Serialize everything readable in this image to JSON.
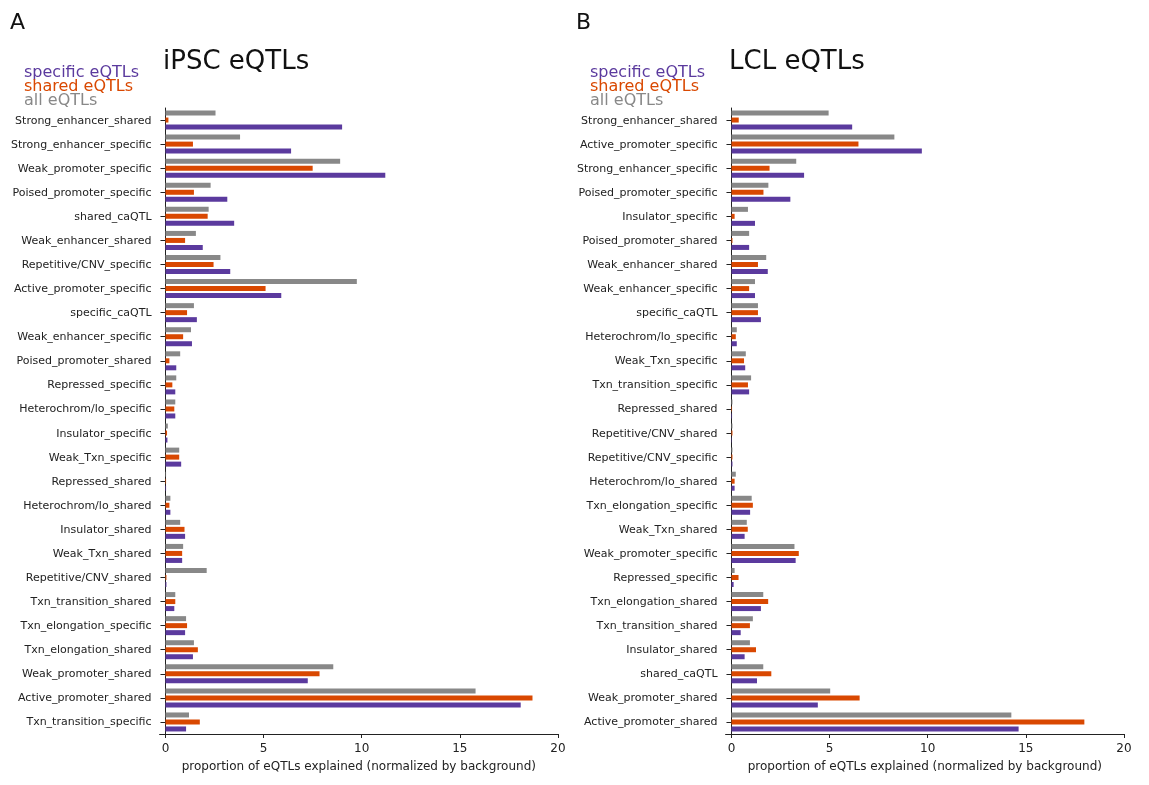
{
  "chart_data": [
    {
      "type": "bar",
      "orientation": "horizontal",
      "title": "iPSC eQTLs",
      "annotations": [
        "A"
      ],
      "xlabel": "proportion of eQTLs explained (normalized by background)",
      "legend": "top left",
      "grid": false,
      "xlim": [
        -0.3,
        20
      ],
      "xticks": [
        0,
        5,
        10,
        15,
        20
      ],
      "categories": [
        "Strong_enhancer_shared",
        "Strong_enhancer_specific",
        "Weak_promoter_specific",
        "Poised_promoter_specific",
        "shared_caQTL",
        "Weak_enhancer_shared",
        "Repetitive/CNV_specific",
        "Active_promoter_specific",
        "specific_caQTL",
        "Weak_enhancer_specific",
        "Poised_promoter_shared",
        "Repressed_specific",
        "Heterochrom/lo_specific",
        "Insulator_specific",
        "Weak_Txn_specific",
        "Repressed_shared",
        "Heterochrom/lo_shared",
        "Insulator_shared",
        "Weak_Txn_shared",
        "Repetitive/CNV_shared",
        "Txn_transition_shared",
        "Txn_elongation_specific",
        "Txn_elongation_shared",
        "Weak_promoter_shared",
        "Active_promoter_shared",
        "Txn_transition_specific"
      ],
      "series": [
        {
          "name": "specific eQTLs",
          "color": "#5b3a9e",
          "values": [
            9.0,
            6.4,
            11.2,
            3.15,
            3.5,
            1.9,
            3.3,
            5.9,
            1.6,
            1.35,
            0.55,
            0.5,
            0.5,
            0.1,
            0.8,
            0.03,
            0.25,
            1.0,
            0.85,
            0.05,
            0.45,
            1.0,
            1.4,
            7.25,
            18.1,
            1.05
          ]
        },
        {
          "name": "shared eQTLs",
          "color": "#d94801",
          "values": [
            0.15,
            1.4,
            7.5,
            1.45,
            2.15,
            1.0,
            2.45,
            5.1,
            1.1,
            0.9,
            0.2,
            0.35,
            0.45,
            0.08,
            0.7,
            0.03,
            0.2,
            0.97,
            0.85,
            0.05,
            0.5,
            1.1,
            1.65,
            7.85,
            18.7,
            1.75
          ]
        },
        {
          "name": "all eQTLs",
          "color": "#888888",
          "values": [
            2.55,
            3.8,
            8.9,
            2.3,
            2.2,
            1.55,
            2.8,
            9.75,
            1.45,
            1.3,
            0.75,
            0.55,
            0.5,
            0.12,
            0.7,
            0.03,
            0.25,
            0.75,
            0.9,
            2.1,
            0.5,
            1.05,
            1.45,
            8.55,
            15.8,
            1.2
          ]
        }
      ]
    },
    {
      "type": "bar",
      "orientation": "horizontal",
      "title": "LCL eQTLs",
      "annotations": [
        "B"
      ],
      "xlabel": "proportion of eQTLs explained (normalized by background)",
      "legend": "top left",
      "grid": false,
      "xlim": [
        -0.3,
        20
      ],
      "xticks": [
        0,
        5,
        10,
        15,
        20
      ],
      "categories": [
        "Strong_enhancer_shared",
        "Active_promoter_specific",
        "Strong_enhancer_specific",
        "Poised_promoter_specific",
        "Insulator_specific",
        "Poised_promoter_shared",
        "Weak_enhancer_shared",
        "Weak_enhancer_specific",
        "specific_caQTL",
        "Heterochrom/lo_specific",
        "Weak_Txn_specific",
        "Txn_transition_specific",
        "Repressed_shared",
        "Repetitive/CNV_shared",
        "Repetitive/CNV_specific",
        "Heterochrom/lo_shared",
        "Txn_elongation_specific",
        "Weak_Txn_shared",
        "Weak_promoter_specific",
        "Repressed_specific",
        "Txn_elongation_shared",
        "Txn_transition_shared",
        "Insulator_shared",
        "shared_caQTL",
        "Weak_promoter_shared",
        "Active_promoter_shared"
      ],
      "series": [
        {
          "name": "specific eQTLs",
          "color": "#5b3a9e",
          "values": [
            6.15,
            9.7,
            3.7,
            3.0,
            1.2,
            0.9,
            1.85,
            1.2,
            1.5,
            0.27,
            0.7,
            0.9,
            0.03,
            0.02,
            0.05,
            0.16,
            0.95,
            0.67,
            3.27,
            0.11,
            1.5,
            0.47,
            0.67,
            1.3,
            4.4,
            14.63
          ]
        },
        {
          "name": "shared eQTLs",
          "color": "#d94801",
          "values": [
            0.37,
            6.47,
            1.94,
            1.63,
            0.16,
            0.05,
            1.35,
            0.9,
            1.35,
            0.22,
            0.64,
            0.84,
            0.03,
            0.05,
            0.05,
            0.16,
            1.09,
            0.83,
            3.43,
            0.36,
            1.87,
            0.94,
            1.25,
            2.03,
            6.53,
            17.98
          ]
        },
        {
          "name": "all eQTLs",
          "color": "#888888",
          "values": [
            4.95,
            8.3,
            3.3,
            1.88,
            0.84,
            0.9,
            1.77,
            1.2,
            1.35,
            0.27,
            0.73,
            1.0,
            0.05,
            0.05,
            0.05,
            0.22,
            1.03,
            0.78,
            3.21,
            0.16,
            1.62,
            1.09,
            0.94,
            1.62,
            5.03,
            14.26
          ]
        }
      ]
    }
  ]
}
